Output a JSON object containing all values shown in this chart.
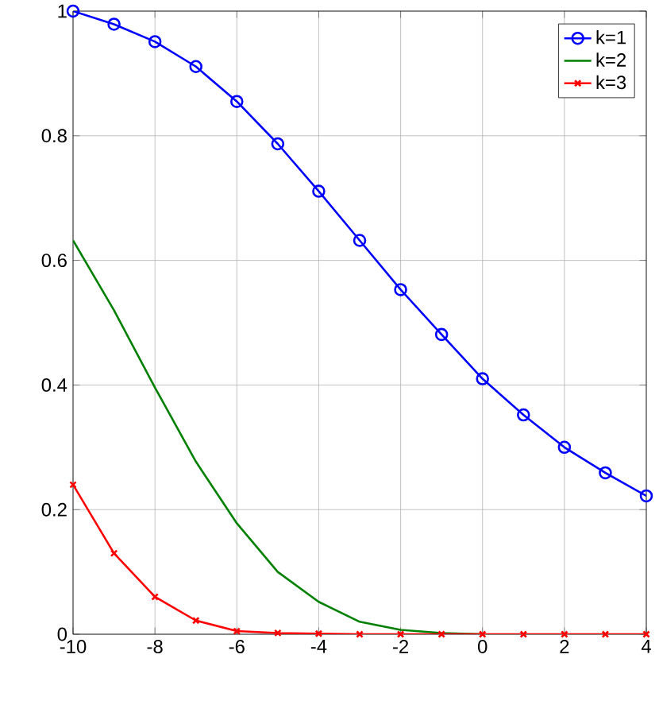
{
  "chart_data": {
    "type": "line",
    "x": [
      -10,
      -9,
      -8,
      -7,
      -6,
      -5,
      -4,
      -3,
      -2,
      -1,
      0,
      1,
      2,
      3,
      4
    ],
    "series": [
      {
        "name": "k=1",
        "color": "#0000ff",
        "marker": "circle",
        "values": [
          1.0,
          0.979,
          0.951,
          0.911,
          0.855,
          0.787,
          0.711,
          0.632,
          0.553,
          0.481,
          0.41,
          0.352,
          0.3,
          0.259,
          0.222
        ]
      },
      {
        "name": "k=2",
        "color": "#008000",
        "marker": "none",
        "values": [
          0.632,
          0.52,
          0.396,
          0.277,
          0.178,
          0.1,
          0.052,
          0.02,
          0.007,
          0.002,
          0,
          null,
          null,
          null,
          null
        ]
      },
      {
        "name": "k=3",
        "color": "#ff0000",
        "marker": "cross",
        "values": [
          0.24,
          0.13,
          0.06,
          0.022,
          0.005,
          0.002,
          0.001,
          0,
          0,
          0,
          0,
          0,
          0,
          0,
          0
        ]
      }
    ],
    "xlim": [
      -10,
      4
    ],
    "ylim": [
      0,
      1
    ],
    "xticks": [
      -10,
      -8,
      -6,
      -4,
      -2,
      0,
      2,
      4
    ],
    "yticks": [
      0,
      0.2,
      0.4,
      0.6,
      0.8,
      1
    ],
    "grid": true,
    "legend": "top right"
  }
}
